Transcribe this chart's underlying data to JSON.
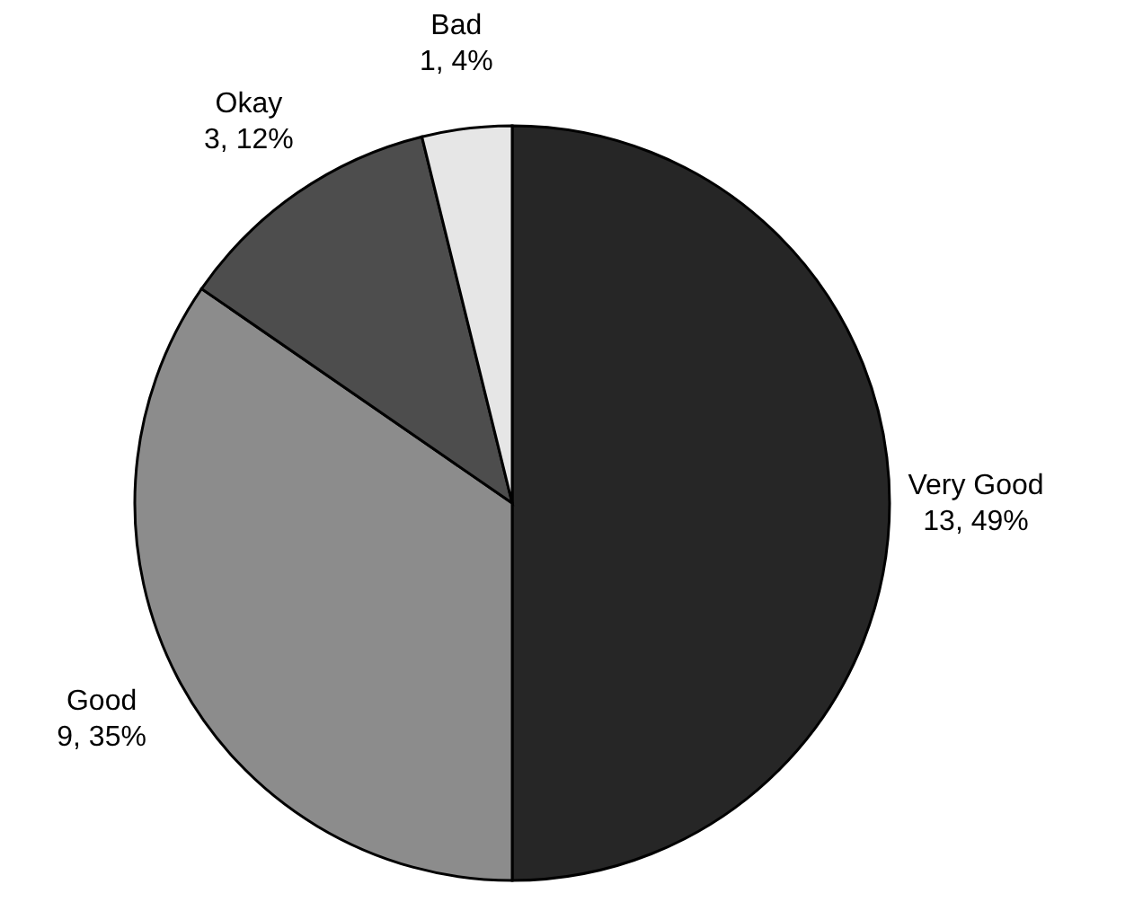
{
  "chart_data": {
    "type": "pie",
    "categories": [
      "Very Good",
      "Good",
      "Okay",
      "Bad"
    ],
    "values": [
      13,
      9,
      3,
      1
    ],
    "value_labels": [
      "13, 49%",
      "9, 35%",
      "3, 12%",
      "1, 4%"
    ],
    "colors": [
      "#262626",
      "#8c8c8c",
      "#4d4d4d",
      "#e6e6e6"
    ]
  }
}
